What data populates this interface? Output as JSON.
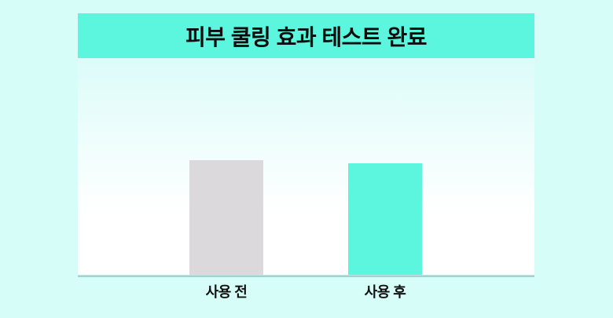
{
  "header": {
    "title": "피부 쿨링 효과 테스트 완료"
  },
  "chart_data": {
    "type": "bar",
    "title": "피부 쿨링 효과 테스트 완료",
    "categories": [
      "사용 전",
      "사용 후"
    ],
    "values": [
      53,
      51.5
    ],
    "value_unit": "relative height, percent of plot area (no numeric axis or gridlines shown)",
    "series_colors": [
      "#dbd9dc",
      "#5bf6dd"
    ],
    "xlabel": "",
    "ylabel": "",
    "ylim": [
      0,
      100
    ],
    "grid": false,
    "legend": false,
    "note": "before-use bar slightly taller than after-use bar"
  },
  "colors": {
    "background": "#d7fdf8",
    "banner": "#5bf6dd",
    "bar_before": "#dbd9dc",
    "bar_after": "#5bf6dd",
    "axis_line": "#9fd4d4",
    "axis_line_highlight": "#c9ebe9",
    "panel_gradient_top": "#dcfcf9",
    "panel_gradient_bottom": "#ffffff",
    "text": "#0d0d0d"
  }
}
